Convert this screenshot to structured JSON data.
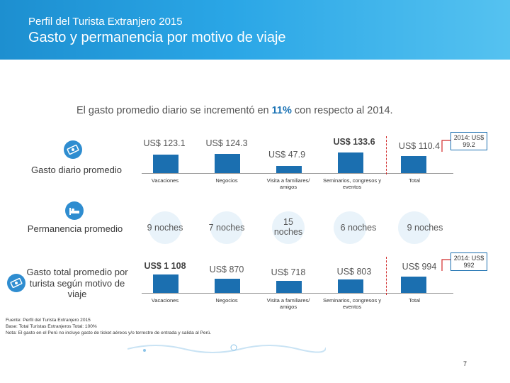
{
  "header": {
    "kicker": "Perfil del Turista Extranjero 2015",
    "title": "Gasto y permanencia por motivo de viaje"
  },
  "subtitle": {
    "before": "El gasto promedio diario se incrementó en ",
    "highlight": "11%",
    "after": " con respecto al 2014."
  },
  "rows": {
    "daily": "Gasto  diario promedio",
    "stay": "Permanencia promedio",
    "total": "Gasto total promedio por turista según motivo de viaje"
  },
  "icons": {
    "daily": "money-icon",
    "stay": "bed-icon",
    "total": "money-icon"
  },
  "categories": [
    "Vacaciones",
    "Negocios",
    "Visita a familiares/ amigos",
    "Seminarios, congresos y eventos",
    "Total"
  ],
  "daily": {
    "values": [
      "US$ 123.1",
      "US$ 124.3",
      "US$ 47.9",
      "US$ 133.6",
      "US$ 110.4"
    ],
    "numbers": [
      123.1,
      124.3,
      47.9,
      133.6,
      110.4
    ],
    "note": "2014: US$ 99.2"
  },
  "stay": {
    "values": [
      "9 noches",
      "7 noches",
      "15 noches",
      "6 noches",
      "9 noches"
    ]
  },
  "total": {
    "values": [
      "US$ 1 108",
      "US$  870",
      "US$  718",
      "US$  803",
      "US$  994"
    ],
    "numbers": [
      1108,
      870,
      718,
      803,
      994
    ],
    "note": "2014: US$ 992"
  },
  "footer": {
    "source": "Fuente: Perfil del Turista Extranjero 2015",
    "base": "Base: Total Turistas Extranjeros    Total: 100%",
    "note": "Nota: El gasto en el Perú no incluye gasto de ticket aéreos y/o terrestre de entrada y salida al Perú."
  },
  "page": "7",
  "colors": {
    "bar": "#1b6fb0",
    "header": "#2aa6e6",
    "accent": "#d12a2a"
  }
}
